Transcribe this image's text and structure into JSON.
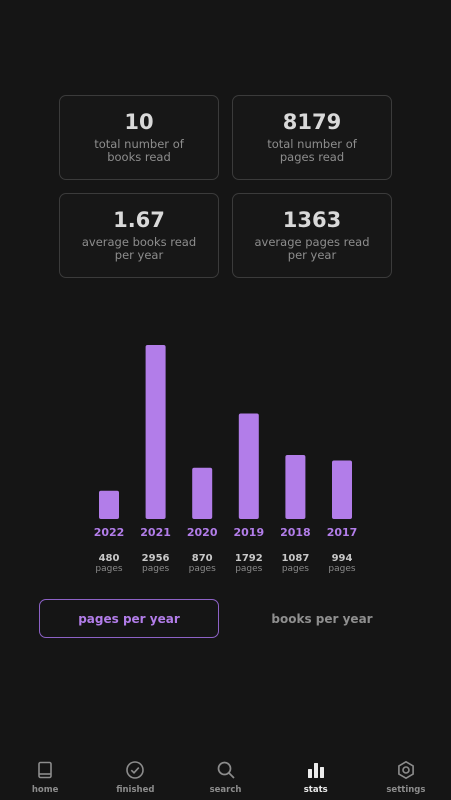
{
  "stats": {
    "total_books": {
      "value": "10",
      "label": "total number of\nbooks read"
    },
    "total_pages": {
      "value": "8179",
      "label": "total number of\npages read"
    },
    "avg_books": {
      "value": "1.67",
      "label": "average books read\nper year"
    },
    "avg_pages": {
      "value": "1363",
      "label": "average pages read\nper year"
    }
  },
  "chart_data": {
    "type": "bar",
    "categories": [
      "2022",
      "2021",
      "2020",
      "2019",
      "2018",
      "2017"
    ],
    "values": [
      480,
      2956,
      870,
      1792,
      1087,
      994
    ],
    "value_labels": [
      "480",
      "2956",
      "870",
      "1792",
      "1087",
      "994"
    ],
    "unit_label": "pages",
    "bar_color": "#b27de9",
    "title": "",
    "xlabel": "",
    "ylabel": "",
    "ylim": [
      0,
      2956
    ]
  },
  "toggle": {
    "active_label": "pages per year",
    "inactive_label": "books per year"
  },
  "nav": {
    "items": [
      {
        "label": "home",
        "icon": "book-icon"
      },
      {
        "label": "finished",
        "icon": "check-circle-icon"
      },
      {
        "label": "search",
        "icon": "search-icon"
      },
      {
        "label": "stats",
        "icon": "bar-chart-icon"
      },
      {
        "label": "settings",
        "icon": "gear-icon"
      }
    ]
  },
  "colors": {
    "accent": "#b27de9",
    "background": "#151515",
    "card_border": "#3b3b3b"
  }
}
